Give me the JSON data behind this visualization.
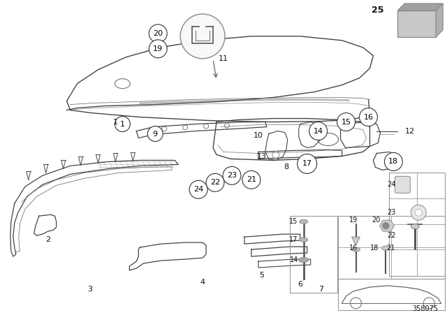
{
  "bg_color": "#ffffff",
  "diagram_number": "358075",
  "fig_width": 6.4,
  "fig_height": 4.48,
  "dpi": 100,
  "line_color": "#444444",
  "label_color": "#111111",
  "circle_color": "#333333",
  "box_color": "#888888"
}
